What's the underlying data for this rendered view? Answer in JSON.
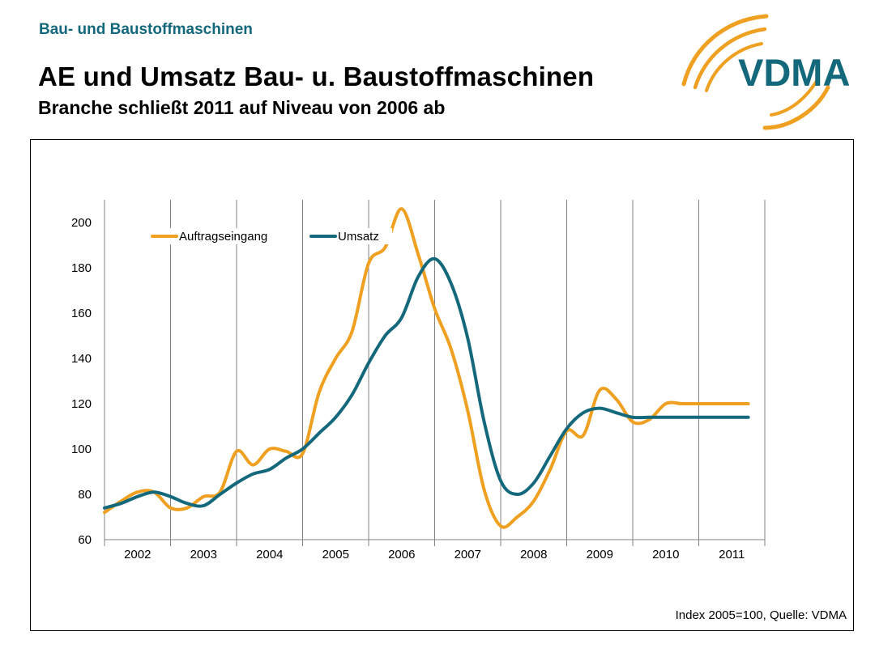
{
  "header": {
    "section": "Bau- und Baustoffmaschinen",
    "title": "AE und Umsatz Bau- u. Baustoffmaschinen",
    "subtitle": "Branche schließt 2011 auf Niveau von 2006 ab"
  },
  "logo": {
    "text": "VDMA",
    "text_color": "#14687c",
    "arc_color": "#f0a020"
  },
  "source": "Index 2005=100, Quelle: VDMA",
  "chart_data": {
    "type": "line",
    "title": "",
    "xlabel": "",
    "ylabel": "",
    "ylim": [
      60,
      210
    ],
    "yticks": [
      60,
      80,
      100,
      120,
      140,
      160,
      180,
      200
    ],
    "categories": [
      "2002",
      "2003",
      "2004",
      "2005",
      "2006",
      "2007",
      "2008",
      "2009",
      "2010",
      "2011"
    ],
    "xlim": [
      2002.0,
      2012.0
    ],
    "grid": "vertical year separators",
    "legend_placement": "top-left",
    "series": [
      {
        "name": "Auftragseingang",
        "color": "#f0a020",
        "x": [
          2002.0,
          2002.25,
          2002.5,
          2002.75,
          2003.0,
          2003.25,
          2003.5,
          2003.75,
          2004.0,
          2004.25,
          2004.5,
          2004.75,
          2005.0,
          2005.25,
          2005.5,
          2005.75,
          2006.0,
          2006.25,
          2006.5,
          2006.75,
          2007.0,
          2007.25,
          2007.5,
          2007.75,
          2008.0,
          2008.25,
          2008.5,
          2008.75,
          2009.0,
          2009.25,
          2009.5,
          2009.75,
          2010.0,
          2010.25,
          2010.5,
          2010.75,
          2011.0,
          2011.25,
          2011.5,
          2011.75
        ],
        "values": [
          72,
          77,
          81,
          81,
          74,
          74,
          79,
          81,
          99,
          93,
          100,
          99,
          98,
          125,
          140,
          152,
          182,
          189,
          206,
          186,
          162,
          144,
          117,
          82,
          66,
          70,
          77,
          91,
          108,
          106,
          126,
          122,
          112,
          113,
          120,
          120,
          120,
          120,
          120,
          120
        ]
      },
      {
        "name": "Umsatz",
        "color": "#14687c",
        "x": [
          2002.0,
          2002.25,
          2002.5,
          2002.75,
          2003.0,
          2003.25,
          2003.5,
          2003.75,
          2004.0,
          2004.25,
          2004.5,
          2004.75,
          2005.0,
          2005.25,
          2005.5,
          2005.75,
          2006.0,
          2006.25,
          2006.5,
          2006.75,
          2007.0,
          2007.25,
          2007.5,
          2007.75,
          2008.0,
          2008.25,
          2008.5,
          2008.75,
          2009.0,
          2009.25,
          2009.5,
          2009.75,
          2010.0,
          2010.25,
          2010.5,
          2010.75,
          2011.0,
          2011.25,
          2011.5,
          2011.75
        ],
        "values": [
          74,
          76,
          79,
          81,
          79,
          76,
          75,
          80,
          85,
          89,
          91,
          96,
          100,
          107,
          114,
          124,
          138,
          150,
          158,
          176,
          184,
          173,
          149,
          112,
          86,
          80,
          85,
          97,
          109,
          116,
          118,
          116,
          114,
          114,
          114,
          114,
          114,
          114,
          114,
          114
        ]
      }
    ]
  }
}
